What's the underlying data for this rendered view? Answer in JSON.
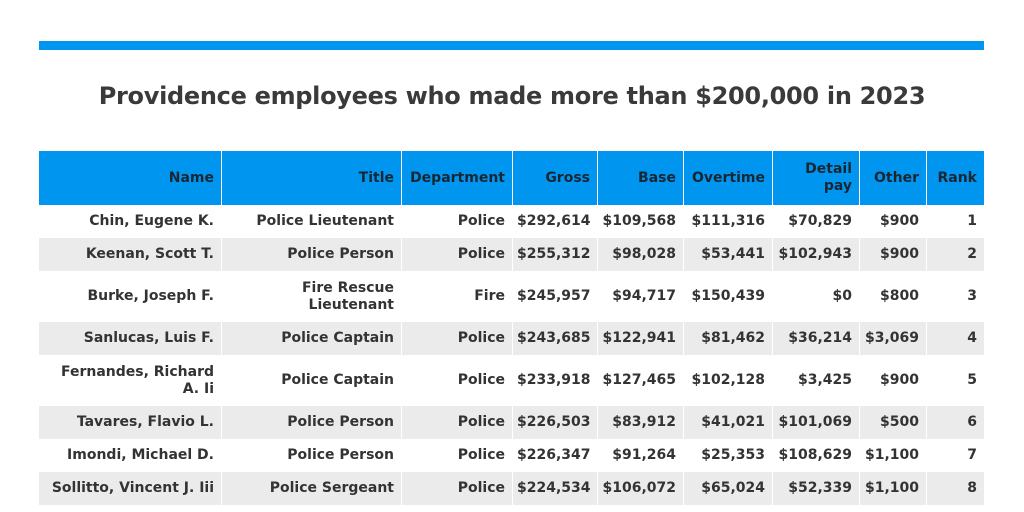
{
  "title": "Providence employees who made more than $200,000 in 2023",
  "colors": {
    "accent": "#0096f0",
    "row_alt": "#ebebeb"
  },
  "table": {
    "headers": {
      "name": "Name",
      "title": "Title",
      "department": "Department",
      "gross": "Gross",
      "base": "Base",
      "overtime": "Overtime",
      "detail_pay": "Detail pay",
      "other": "Other",
      "rank": "Rank"
    },
    "rows": [
      {
        "name": "Chin, Eugene K.",
        "title": "Police Lieutenant",
        "department": "Police",
        "gross": "$292,614",
        "base": "$109,568",
        "overtime": "$111,316",
        "detail_pay": "$70,829",
        "other": "$900",
        "rank": "1"
      },
      {
        "name": "Keenan, Scott T.",
        "title": "Police Person",
        "department": "Police",
        "gross": "$255,312",
        "base": "$98,028",
        "overtime": "$53,441",
        "detail_pay": "$102,943",
        "other": "$900",
        "rank": "2"
      },
      {
        "name": "Burke, Joseph F.",
        "title": "Fire Rescue Lieutenant",
        "department": "Fire",
        "gross": "$245,957",
        "base": "$94,717",
        "overtime": "$150,439",
        "detail_pay": "$0",
        "other": "$800",
        "rank": "3"
      },
      {
        "name": "Sanlucas, Luis F.",
        "title": "Police Captain",
        "department": "Police",
        "gross": "$243,685",
        "base": "$122,941",
        "overtime": "$81,462",
        "detail_pay": "$36,214",
        "other": "$3,069",
        "rank": "4"
      },
      {
        "name": "Fernandes, Richard A. Ii",
        "title": "Police Captain",
        "department": "Police",
        "gross": "$233,918",
        "base": "$127,465",
        "overtime": "$102,128",
        "detail_pay": "$3,425",
        "other": "$900",
        "rank": "5"
      },
      {
        "name": "Tavares, Flavio L.",
        "title": "Police Person",
        "department": "Police",
        "gross": "$226,503",
        "base": "$83,912",
        "overtime": "$41,021",
        "detail_pay": "$101,069",
        "other": "$500",
        "rank": "6"
      },
      {
        "name": "Imondi, Michael D.",
        "title": "Police Person",
        "department": "Police",
        "gross": "$226,347",
        "base": "$91,264",
        "overtime": "$25,353",
        "detail_pay": "$108,629",
        "other": "$1,100",
        "rank": "7"
      },
      {
        "name": "Sollitto, Vincent J. Iii",
        "title": "Police Sergeant",
        "department": "Police",
        "gross": "$224,534",
        "base": "$106,072",
        "overtime": "$65,024",
        "detail_pay": "$52,339",
        "other": "$1,100",
        "rank": "8"
      }
    ]
  }
}
